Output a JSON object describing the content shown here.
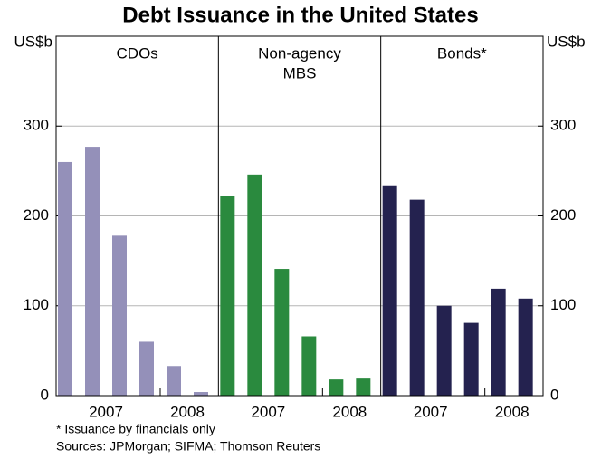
{
  "title": "Debt Issuance in the United States",
  "notes": [
    "*   Issuance by financials only",
    "Sources: JPMorgan; SIFMA; Thomson Reuters"
  ],
  "chart_data": [
    {
      "type": "bar",
      "title": [
        "CDOs"
      ],
      "y_label": "US$b",
      "categories": [
        null,
        null,
        null,
        null,
        null,
        null
      ],
      "values": [
        260,
        277,
        178,
        60,
        33,
        4
      ],
      "color": "#9490b9",
      "x_groups": [
        {
          "label": "2007",
          "start": 0,
          "end": 3
        },
        {
          "label": "2008",
          "start": 4,
          "end": 5
        }
      ],
      "ylim": [
        0,
        400
      ],
      "yticks": [
        0,
        100,
        200,
        300
      ],
      "grid": true
    },
    {
      "type": "bar",
      "title": [
        "Non-agency",
        "MBS"
      ],
      "categories": [
        null,
        null,
        null,
        null,
        null,
        null
      ],
      "values": [
        222,
        246,
        141,
        66,
        18,
        19
      ],
      "color": "#2a8a3e",
      "x_groups": [
        {
          "label": "2007",
          "start": 0,
          "end": 3
        },
        {
          "label": "2008",
          "start": 4,
          "end": 5
        }
      ],
      "ylim": [
        0,
        400
      ],
      "yticks": [
        0,
        100,
        200,
        300
      ],
      "grid": true
    },
    {
      "type": "bar",
      "title": [
        "Bonds*"
      ],
      "y_label": "US$b",
      "categories": [
        null,
        null,
        null,
        null,
        null,
        null
      ],
      "values": [
        234,
        218,
        100,
        81,
        119,
        108
      ],
      "color": "#24224f",
      "x_groups": [
        {
          "label": "2007",
          "start": 0,
          "end": 3
        },
        {
          "label": "2008",
          "start": 4,
          "end": 5
        }
      ],
      "ylim": [
        0,
        400
      ],
      "yticks": [
        0,
        100,
        200,
        300
      ],
      "grid": true
    }
  ]
}
